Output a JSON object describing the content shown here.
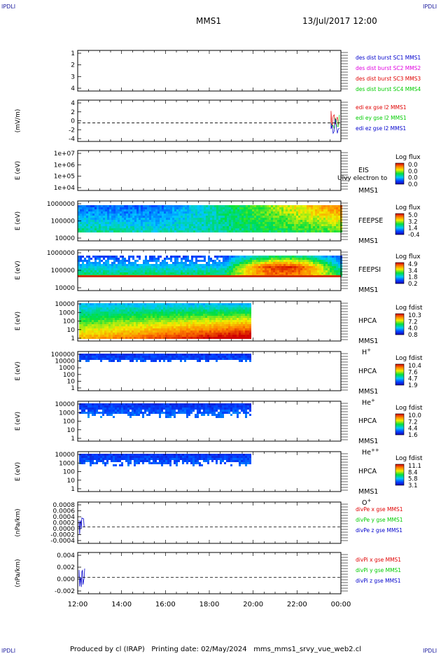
{
  "corner_labels": {
    "tl": "IPDLI",
    "tr": "IPDLI",
    "bl": "IPDLI",
    "br": "IPDLI"
  },
  "header": {
    "spacecraft": "MMS1",
    "datetime": "13/Jul/2017 12:00"
  },
  "footer": "Produced by cl (IRAP)   Printing date: 02/May/2024   mms_mms1_srvy_vue_web2.cl",
  "colors": {
    "red": "#e00000",
    "magenta": "#e000e0",
    "green": "#00cc00",
    "blue": "#0000cc"
  },
  "chart_data": [
    {
      "type": "line",
      "name": "dist burst",
      "ylim": [
        0.5,
        4.5
      ],
      "yticks": [
        "1",
        "2",
        "3",
        "4"
      ],
      "legend": [
        {
          "label": "des dist burst SC1 MMS1",
          "color": "#0000cc"
        },
        {
          "label": "des dist burst SC2 MMS2",
          "color": "#e000e0"
        },
        {
          "label": "des dist burst SC3 MMS3",
          "color": "#e00000"
        },
        {
          "label": "des dist burst SC4 MMS4",
          "color": "#00cc00"
        }
      ]
    },
    {
      "type": "line",
      "name": "edi",
      "ylabel": "(mV/m)",
      "ylim": [
        -4,
        4.5
      ],
      "yticks": [
        "4",
        "2",
        "0",
        "-2",
        "-4"
      ],
      "series_start_hour": 23.55,
      "legend": [
        {
          "label": "edi ex gse l2 MMS1",
          "color": "#e00000"
        },
        {
          "label": "edi ey gse l2 MMS1",
          "color": "#00cc00"
        },
        {
          "label": "edi ez gse l2 MMS1",
          "color": "#0000cc"
        }
      ]
    },
    {
      "type": "heatmap",
      "name": "EIS",
      "ylabel": "E (eV)",
      "yticks": [
        "1e+07",
        "1e+06",
        "1e+05",
        "1e+04"
      ],
      "side": [
        "EIS",
        "MMS1"
      ],
      "overlay": "Ulvy electron to",
      "cb_title": "Log flux",
      "cb_ticks": [
        "0.0",
        "0.0",
        "0.0",
        "0.0"
      ]
    },
    {
      "type": "heatmap",
      "name": "FEEPSE",
      "ylabel": "E (eV)",
      "yticks": [
        "1000000",
        "100000",
        "10000"
      ],
      "side": [
        "FEEPSE",
        "MMS1"
      ],
      "cb_title": "Log flux",
      "cb_ticks": [
        "5.0",
        "3.2",
        "1.4",
        "-0.4"
      ]
    },
    {
      "type": "heatmap",
      "name": "FEEPSI",
      "ylabel": "E (eV)",
      "yticks": [
        "1000000",
        "100000",
        "10000"
      ],
      "side": [
        "FEEPSI",
        "MMS1"
      ],
      "cb_title": "Log flux",
      "cb_ticks": [
        "4.9",
        "3.4",
        "1.8",
        "0.2"
      ]
    },
    {
      "type": "heatmap",
      "name": "HPCA H+",
      "ylabel": "E (eV)",
      "yticks": [
        "10000",
        "1000",
        "100",
        "10",
        "1"
      ],
      "side": [
        "HPCA",
        "MMS1"
      ],
      "species": "H",
      "species_sup": "+",
      "data_end_hour": 19.85,
      "cb_title": "Log fdist",
      "cb_ticks": [
        "10.3",
        "7.2",
        "4.0",
        "0.8"
      ]
    },
    {
      "type": "heatmap",
      "name": "HPCA He+",
      "ylabel": "E (eV)",
      "yticks": [
        "100000",
        "10000",
        "1000",
        "100",
        "10",
        "1"
      ],
      "side": [
        "HPCA",
        "MMS1"
      ],
      "species": "He",
      "species_sup": "+",
      "data_end_hour": 19.85,
      "cb_title": "Log fdist",
      "cb_ticks": [
        "10.4",
        "7.6",
        "4.7",
        "1.9"
      ]
    },
    {
      "type": "heatmap",
      "name": "HPCA He++",
      "ylabel": "E (eV)",
      "yticks": [
        "10000",
        "1000",
        "100",
        "10",
        "1"
      ],
      "side": [
        "HPCA",
        "MMS1"
      ],
      "species": "He",
      "species_sup": "++",
      "data_end_hour": 19.85,
      "cb_title": "Log fdist",
      "cb_ticks": [
        "10.0",
        "7.2",
        "4.4",
        "1.6"
      ]
    },
    {
      "type": "heatmap",
      "name": "HPCA O+",
      "ylabel": "E (eV)",
      "yticks": [
        "10000",
        "1000",
        "100",
        "10",
        "1"
      ],
      "side": [
        "HPCA",
        "MMS1"
      ],
      "species": "O",
      "species_sup": "+",
      "data_end_hour": 19.85,
      "cb_title": "Log fdist",
      "cb_ticks": [
        "11.1",
        "8.4",
        "5.8",
        "3.1"
      ]
    },
    {
      "type": "line",
      "name": "divPe",
      "ylabel": "(nPa/km)",
      "yticks": [
        "0.0008",
        "0.0006",
        "0.0004",
        "0.0002",
        "0.0000",
        "-0.0002",
        "-0.0004"
      ],
      "legend": [
        {
          "label": "divPe x gse MMS1",
          "color": "#e00000"
        },
        {
          "label": "divPe y gse MMS1",
          "color": "#00cc00"
        },
        {
          "label": "divPe z gse MMS1",
          "color": "#0000cc"
        }
      ]
    },
    {
      "type": "line",
      "name": "divPi",
      "ylabel": "(nPa/km)",
      "yticks": [
        "0.004",
        "0.002",
        "0.000",
        "-0.002"
      ],
      "legend": [
        {
          "label": "divPi x gse MMS1",
          "color": "#e00000"
        },
        {
          "label": "divPi y gse MMS1",
          "color": "#00cc00"
        },
        {
          "label": "divPi z gse MMS1",
          "color": "#0000cc"
        }
      ]
    }
  ],
  "xaxis": {
    "ticks": [
      "12:00",
      "14:00",
      "16:00",
      "18:00",
      "20:00",
      "22:00",
      "00:00"
    ],
    "range_hours": [
      12,
      24
    ]
  }
}
